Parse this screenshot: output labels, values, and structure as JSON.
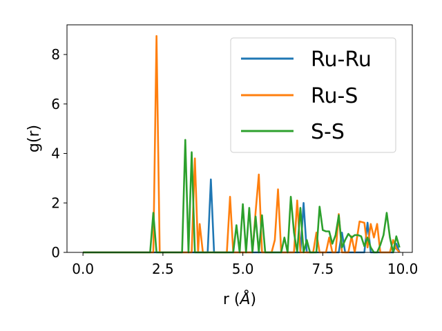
{
  "chart_data": {
    "type": "line",
    "xlabel": "r (",
    "xlabel_unit": "Å",
    "xlabel_close": ")",
    "ylabel": "g(r)",
    "xlim": [
      -0.5,
      10.3
    ],
    "ylim": [
      0,
      9.2
    ],
    "xticks": [
      0.0,
      2.5,
      5.0,
      7.5,
      10.0
    ],
    "xtick_labels": [
      "0.0",
      "2.5",
      "5.0",
      "7.5",
      "10.0"
    ],
    "yticks": [
      0,
      2,
      4,
      6,
      8
    ],
    "ytick_labels": [
      "0",
      "2",
      "4",
      "6",
      "8"
    ],
    "grid": false,
    "legend_position": "top-right",
    "series": [
      {
        "name": "Ru-Ru",
        "color": "#1f77b4",
        "points": [
          [
            0.0,
            0
          ],
          [
            3.9,
            0
          ],
          [
            4.0,
            2.95
          ],
          [
            4.1,
            0
          ],
          [
            6.8,
            0
          ],
          [
            6.9,
            2.0
          ],
          [
            7.0,
            0
          ],
          [
            8.0,
            0
          ],
          [
            8.1,
            0.8
          ],
          [
            8.2,
            0
          ],
          [
            8.8,
            0
          ],
          [
            8.9,
            1.2
          ],
          [
            9.0,
            0
          ],
          [
            9.7,
            0
          ],
          [
            9.8,
            0.35
          ],
          [
            9.9,
            0
          ]
        ]
      },
      {
        "name": "Ru-S",
        "color": "#ff7f0e",
        "points": [
          [
            0.0,
            0
          ],
          [
            2.2,
            0
          ],
          [
            2.3,
            8.75
          ],
          [
            2.4,
            0
          ],
          [
            3.4,
            0
          ],
          [
            3.5,
            3.8
          ],
          [
            3.6,
            0
          ],
          [
            3.65,
            1.15
          ],
          [
            3.75,
            0
          ],
          [
            4.5,
            0
          ],
          [
            4.6,
            2.25
          ],
          [
            4.7,
            0
          ],
          [
            5.3,
            0
          ],
          [
            5.4,
            1.65
          ],
          [
            5.5,
            3.15
          ],
          [
            5.6,
            0
          ],
          [
            5.9,
            0
          ],
          [
            6.0,
            0.5
          ],
          [
            6.1,
            2.55
          ],
          [
            6.2,
            0
          ],
          [
            6.6,
            0
          ],
          [
            6.7,
            2.1
          ],
          [
            6.8,
            0
          ],
          [
            7.2,
            0
          ],
          [
            7.3,
            0.8
          ],
          [
            7.4,
            0
          ],
          [
            7.6,
            0
          ],
          [
            7.7,
            0.6
          ],
          [
            7.8,
            0
          ],
          [
            7.9,
            0
          ],
          [
            8.0,
            1.55
          ],
          [
            8.1,
            0
          ],
          [
            8.3,
            0
          ],
          [
            8.4,
            0.65
          ],
          [
            8.5,
            0
          ],
          [
            8.65,
            1.25
          ],
          [
            8.8,
            1.2
          ],
          [
            8.9,
            0.2
          ],
          [
            9.0,
            1.15
          ],
          [
            9.1,
            0.6
          ],
          [
            9.2,
            1.15
          ],
          [
            9.3,
            0
          ],
          [
            9.6,
            0
          ],
          [
            9.7,
            0.5
          ],
          [
            9.8,
            0.15
          ],
          [
            9.9,
            0
          ]
        ]
      },
      {
        "name": "S-S",
        "color": "#2ca02c",
        "points": [
          [
            0.0,
            0
          ],
          [
            2.1,
            0
          ],
          [
            2.2,
            1.6
          ],
          [
            2.3,
            0
          ],
          [
            3.1,
            0
          ],
          [
            3.2,
            4.55
          ],
          [
            3.3,
            0
          ],
          [
            3.4,
            4.05
          ],
          [
            3.5,
            0
          ],
          [
            4.7,
            0
          ],
          [
            4.8,
            1.1
          ],
          [
            4.9,
            0
          ],
          [
            5.0,
            1.95
          ],
          [
            5.1,
            0
          ],
          [
            5.2,
            1.8
          ],
          [
            5.3,
            0
          ],
          [
            5.4,
            1.45
          ],
          [
            5.5,
            0
          ],
          [
            5.6,
            1.5
          ],
          [
            5.7,
            0
          ],
          [
            6.2,
            0
          ],
          [
            6.3,
            0.6
          ],
          [
            6.4,
            0
          ],
          [
            6.5,
            2.25
          ],
          [
            6.6,
            0.8
          ],
          [
            6.7,
            0
          ],
          [
            6.8,
            1.8
          ],
          [
            6.9,
            0
          ],
          [
            7.0,
            0.5
          ],
          [
            7.1,
            0
          ],
          [
            7.3,
            0
          ],
          [
            7.4,
            1.85
          ],
          [
            7.5,
            0.9
          ],
          [
            7.6,
            0.85
          ],
          [
            7.7,
            0.85
          ],
          [
            7.8,
            0.35
          ],
          [
            7.9,
            0.7
          ],
          [
            8.0,
            1.5
          ],
          [
            8.1,
            0.2
          ],
          [
            8.2,
            0.5
          ],
          [
            8.3,
            0.75
          ],
          [
            8.4,
            0.6
          ],
          [
            8.5,
            0.7
          ],
          [
            8.6,
            0.7
          ],
          [
            8.7,
            0.65
          ],
          [
            8.8,
            0.25
          ],
          [
            8.9,
            0.6
          ],
          [
            9.0,
            0.2
          ],
          [
            9.1,
            0
          ],
          [
            9.2,
            0
          ],
          [
            9.3,
            0.3
          ],
          [
            9.4,
            0.7
          ],
          [
            9.5,
            1.6
          ],
          [
            9.6,
            0.6
          ],
          [
            9.7,
            0
          ],
          [
            9.8,
            0.65
          ],
          [
            9.9,
            0.2
          ]
        ]
      }
    ]
  }
}
